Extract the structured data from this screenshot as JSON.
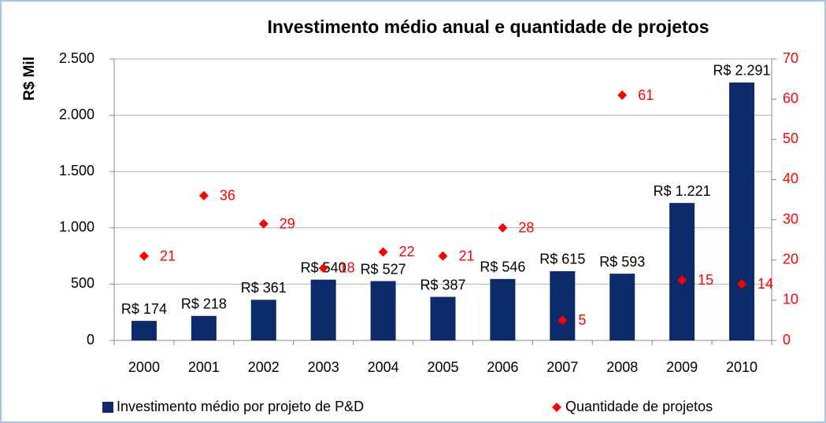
{
  "chart_data": {
    "type": "bar",
    "title": "Investimento médio anual e quantidade de projetos",
    "ylabel": "R$ Mil",
    "categories": [
      "2000",
      "2001",
      "2002",
      "2003",
      "2004",
      "2005",
      "2006",
      "2007",
      "2008",
      "2009",
      "2010"
    ],
    "series": [
      {
        "name": "Investimento médio por projeto de P&D",
        "type": "bar",
        "color": "#0d2a6b",
        "values": [
          174,
          218,
          361,
          540,
          527,
          387,
          546,
          615,
          593,
          1221,
          2291
        ],
        "value_labels": [
          "R$ 174",
          "R$ 218",
          "R$ 361",
          "R$ 540",
          "R$ 527",
          "R$ 387",
          "R$ 546",
          "R$ 615",
          "R$ 593",
          "R$ 1.221",
          "R$ 2.291"
        ]
      },
      {
        "name": "Quantidade de projetos",
        "type": "scatter",
        "axis": "y2",
        "color": "#ff0000",
        "values": [
          21,
          36,
          29,
          18,
          22,
          21,
          28,
          5,
          61,
          15,
          14
        ]
      }
    ],
    "ylim": [
      0,
      2500
    ],
    "yticks": [
      0,
      {
        "value": 500,
        "label": "500"
      },
      {
        "value": 1000,
        "label": "1.000"
      },
      {
        "value": 1500,
        "label": "1.500"
      },
      {
        "value": 2000,
        "label": "2.000"
      },
      {
        "value": 2500,
        "label": "2.500"
      }
    ],
    "y2lim": [
      0,
      70
    ],
    "y2ticks": [
      0,
      10,
      20,
      30,
      40,
      50,
      60,
      70
    ],
    "grid": true,
    "legend": "bottom"
  }
}
